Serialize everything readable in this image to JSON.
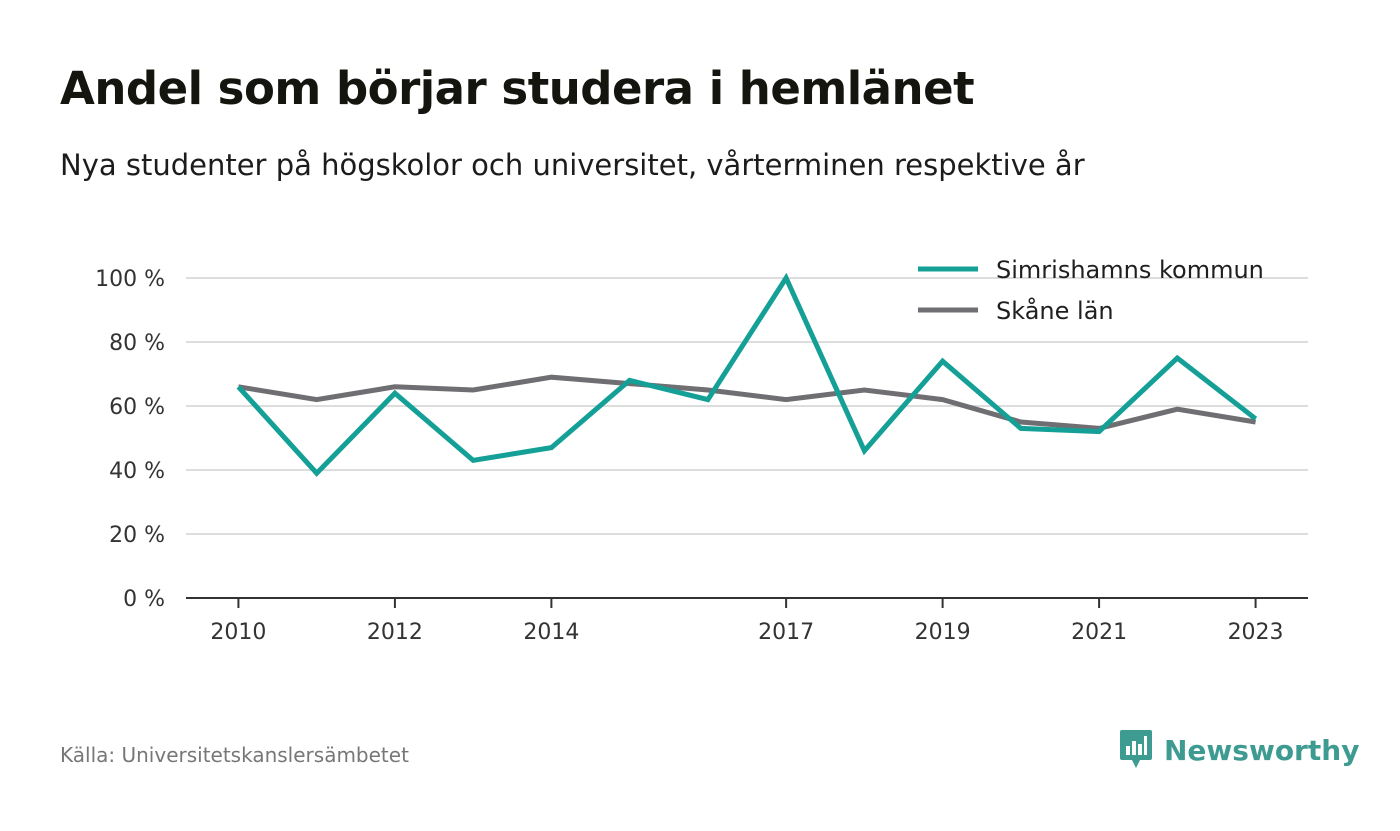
{
  "title": "Andel som börjar studera i hemlänet",
  "subtitle": "Nya studenter på högskolor och universitet, vårterminen respektive år",
  "source": "Källa: Universitetskanslersämbetet",
  "brand": "Newsworthy",
  "colors": {
    "simrishamn": "#14a096",
    "skane": "#6f6e73",
    "grid": "#dddddd",
    "axis": "#333333",
    "brand": "#3d9b91"
  },
  "chart_data": {
    "type": "line",
    "x": [
      2010,
      2011,
      2012,
      2013,
      2014,
      2015,
      2016,
      2017,
      2018,
      2019,
      2020,
      2021,
      2022,
      2023
    ],
    "x_tick_values": [
      2010,
      2012,
      2014,
      2017,
      2019,
      2021,
      2023
    ],
    "x_tick_labels": [
      "2010",
      "2012",
      "2014",
      "2017",
      "2019",
      "2021",
      "2023"
    ],
    "y_ticks": [
      0,
      20,
      40,
      60,
      80,
      100
    ],
    "y_tick_labels": [
      "0 %",
      "20 %",
      "40 %",
      "60 %",
      "80 %",
      "100 %"
    ],
    "ylim": [
      0,
      100
    ],
    "xlim": [
      2009.33,
      2023.67
    ],
    "grid": true,
    "legend": "top-right",
    "series": [
      {
        "name": "Simrishamns kommun",
        "color": "#14a096",
        "values": [
          66,
          39,
          64,
          43,
          47,
          68,
          62,
          100,
          46,
          74,
          53,
          52,
          75,
          56
        ]
      },
      {
        "name": "Skåne län",
        "color": "#6f6e73",
        "values": [
          66,
          62,
          66,
          65,
          69,
          67,
          65,
          62,
          65,
          62,
          55,
          53,
          59,
          55
        ]
      }
    ]
  }
}
